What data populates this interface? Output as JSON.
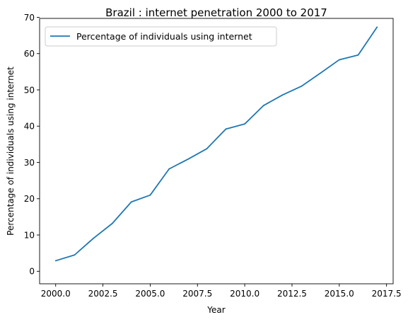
{
  "chart_data": {
    "type": "line",
    "title": "Brazil : internet penetration 2000 to 2017",
    "xlabel": "Year",
    "ylabel": "Percentage of individuals using internet",
    "xlim": [
      2000,
      2017.5
    ],
    "ylim": [
      0,
      70
    ],
    "x_ticks": [
      2000.0,
      2002.5,
      2005.0,
      2007.5,
      2010.0,
      2012.5,
      2015.0,
      2017.5
    ],
    "x_tick_labels": [
      "2000.0",
      "2002.5",
      "2005.0",
      "2007.5",
      "2010.0",
      "2012.5",
      "2015.0",
      "2017.5"
    ],
    "y_ticks": [
      0,
      10,
      20,
      30,
      40,
      50,
      60,
      70
    ],
    "y_tick_labels": [
      "0",
      "10",
      "20",
      "30",
      "40",
      "50",
      "60",
      "70"
    ],
    "grid": false,
    "legend_position": "upper-left",
    "series": [
      {
        "name": "Percentage of individuals using internet",
        "color": "#1f77b4",
        "x": [
          2000,
          2001,
          2002,
          2003,
          2004,
          2005,
          2006,
          2007,
          2008,
          2009,
          2010,
          2011,
          2012,
          2013,
          2014,
          2015,
          2016,
          2017
        ],
        "y": [
          2.9,
          4.5,
          9.1,
          13.2,
          19.1,
          21.0,
          28.2,
          30.9,
          33.8,
          39.2,
          40.6,
          45.7,
          48.6,
          51.0,
          54.6,
          58.3,
          59.6,
          67.3
        ]
      }
    ]
  }
}
